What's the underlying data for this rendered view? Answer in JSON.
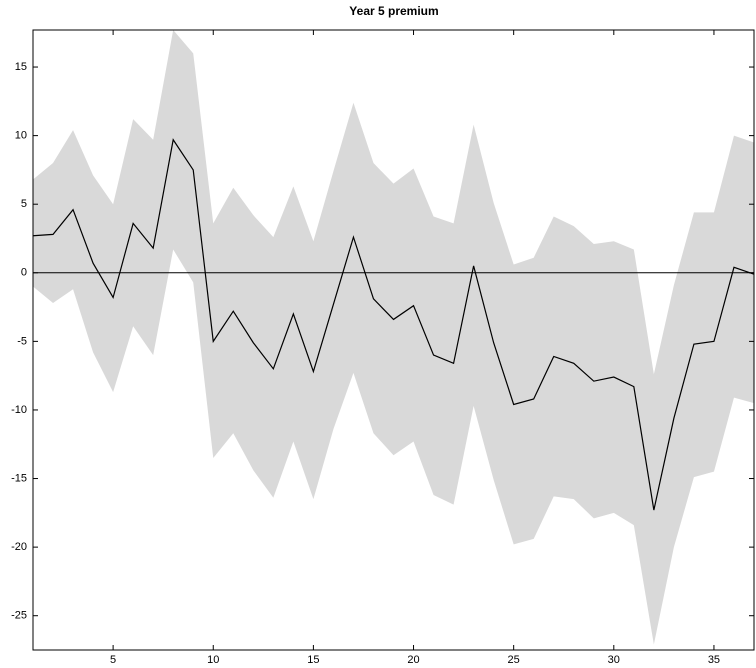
{
  "chart_data": {
    "type": "line",
    "title": "Year 5 premium",
    "x": [
      1,
      2,
      3,
      4,
      5,
      6,
      7,
      8,
      9,
      10,
      11,
      12,
      13,
      14,
      15,
      16,
      17,
      18,
      19,
      20,
      21,
      22,
      23,
      24,
      25,
      26,
      27,
      28,
      29,
      30,
      31,
      32,
      33,
      34,
      35,
      36,
      37
    ],
    "values": [
      2.7,
      2.8,
      4.6,
      0.7,
      -1.8,
      3.6,
      1.8,
      9.7,
      7.5,
      -5.0,
      -2.8,
      -5.1,
      -7.0,
      -3.0,
      -7.2,
      -2.3,
      2.6,
      -1.9,
      -3.4,
      -2.4,
      -6.0,
      -6.6,
      0.5,
      -5.1,
      -9.6,
      -9.2,
      -6.1,
      -6.6,
      -7.9,
      -7.6,
      -8.3,
      -17.3,
      -10.6,
      -5.2,
      -5.0,
      0.4,
      -0.1
    ],
    "upper": [
      6.8,
      8.0,
      10.4,
      7.1,
      5.0,
      11.2,
      9.7,
      17.7,
      16.0,
      3.6,
      6.2,
      4.2,
      2.6,
      6.3,
      2.3,
      7.4,
      12.4,
      8.0,
      6.5,
      7.6,
      4.1,
      3.6,
      10.8,
      5.1,
      0.6,
      1.1,
      4.1,
      3.4,
      2.1,
      2.3,
      1.7,
      -7.4,
      -0.9,
      4.4,
      4.4,
      10.0,
      9.5
    ],
    "lower": [
      -1.0,
      -2.2,
      -1.2,
      -5.8,
      -8.7,
      -3.9,
      -6.0,
      1.7,
      -0.7,
      -13.5,
      -11.7,
      -14.4,
      -16.4,
      -12.3,
      -16.5,
      -11.4,
      -7.3,
      -11.7,
      -13.3,
      -12.3,
      -16.2,
      -16.9,
      -9.7,
      -15.1,
      -19.8,
      -19.4,
      -16.3,
      -16.5,
      -17.9,
      -17.5,
      -18.4,
      -27.1,
      -20.0,
      -14.9,
      -14.5,
      -9.1,
      -9.5
    ],
    "color": "#000000",
    "band_color": "#d9d9d9",
    "xlim": [
      1,
      37
    ],
    "ylim": [
      -27.5,
      17.7
    ],
    "xticks": [
      5,
      10,
      15,
      20,
      25,
      30,
      35
    ],
    "yticks": [
      -25,
      -20,
      -15,
      -10,
      -5,
      0,
      5,
      10,
      15
    ],
    "zero_line": true
  }
}
